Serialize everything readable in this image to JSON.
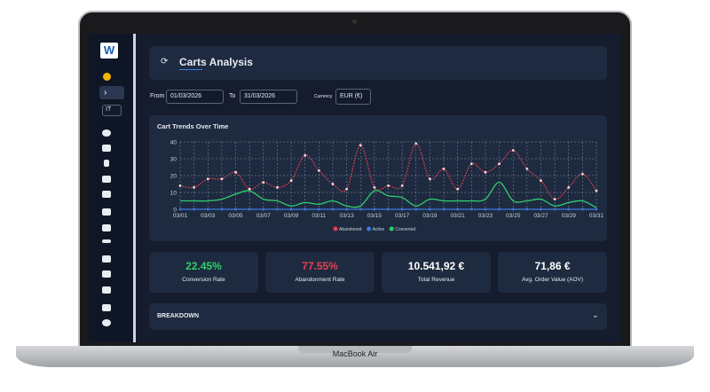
{
  "sidebar": {
    "logo": "W",
    "language": "IT"
  },
  "header": {
    "title": "Carts Analysis"
  },
  "filters": {
    "from_label": "From",
    "from_value": "01/03/2026",
    "to_label": "To",
    "to_value": "31/03/2026",
    "currency_label": "Currency",
    "currency_value": "EUR (€)"
  },
  "chart_data": {
    "type": "line",
    "title": "Cart Trends Over Time",
    "categories": [
      "03/01",
      null,
      "03/03",
      null,
      "03/05",
      null,
      "03/07",
      null,
      "03/09",
      null,
      "03/11",
      null,
      "03/13",
      null,
      "03/15",
      null,
      "03/17",
      null,
      "03/19",
      null,
      "03/21",
      null,
      "03/23",
      null,
      "03/25",
      null,
      "03/27",
      null,
      "03/29",
      null,
      "03/31"
    ],
    "series": [
      {
        "name": "Abandoned",
        "color": "#e8414f",
        "values": [
          14,
          13,
          18,
          18,
          22,
          12,
          16,
          13,
          17,
          32,
          23,
          15,
          12,
          38,
          13,
          14,
          14,
          39,
          18,
          24,
          12,
          27,
          22,
          27,
          35,
          24,
          17,
          6,
          13,
          21,
          11
        ]
      },
      {
        "name": "Active",
        "color": "#3d7be0",
        "values": [
          0,
          0,
          0,
          0,
          0,
          0,
          0,
          0,
          0,
          0,
          0,
          0,
          0,
          0,
          0,
          0,
          0,
          0,
          0,
          0,
          0,
          0,
          0,
          0,
          0,
          0,
          0,
          0,
          0,
          0,
          0
        ]
      },
      {
        "name": "Converted",
        "color": "#2fcf6e",
        "values": [
          5,
          5,
          5,
          6,
          9,
          11,
          6,
          5,
          2,
          4,
          3,
          5,
          2,
          2,
          11,
          8,
          7,
          2,
          6,
          5,
          5,
          5,
          6,
          16,
          5,
          5,
          6,
          2,
          4,
          5,
          1
        ]
      }
    ],
    "ylim": [
      0,
      40
    ],
    "yticks": [
      0,
      10,
      20,
      30,
      40
    ],
    "grid": true
  },
  "stats": [
    {
      "value": "22.45%",
      "label": "Conversion Rate",
      "color": "#2fcf6e"
    },
    {
      "value": "77.55%",
      "label": "Abandonment Rate",
      "color": "#e8414f"
    },
    {
      "value": "10.541,92 €",
      "label": "Total Revenue",
      "color": "#ffffff"
    },
    {
      "value": "71,86 €",
      "label": "Avg. Order Value (AOV)",
      "color": "#ffffff"
    }
  ],
  "breakdown": {
    "title": "BREAKDOWN"
  },
  "device": {
    "label": "MacBook Air"
  }
}
